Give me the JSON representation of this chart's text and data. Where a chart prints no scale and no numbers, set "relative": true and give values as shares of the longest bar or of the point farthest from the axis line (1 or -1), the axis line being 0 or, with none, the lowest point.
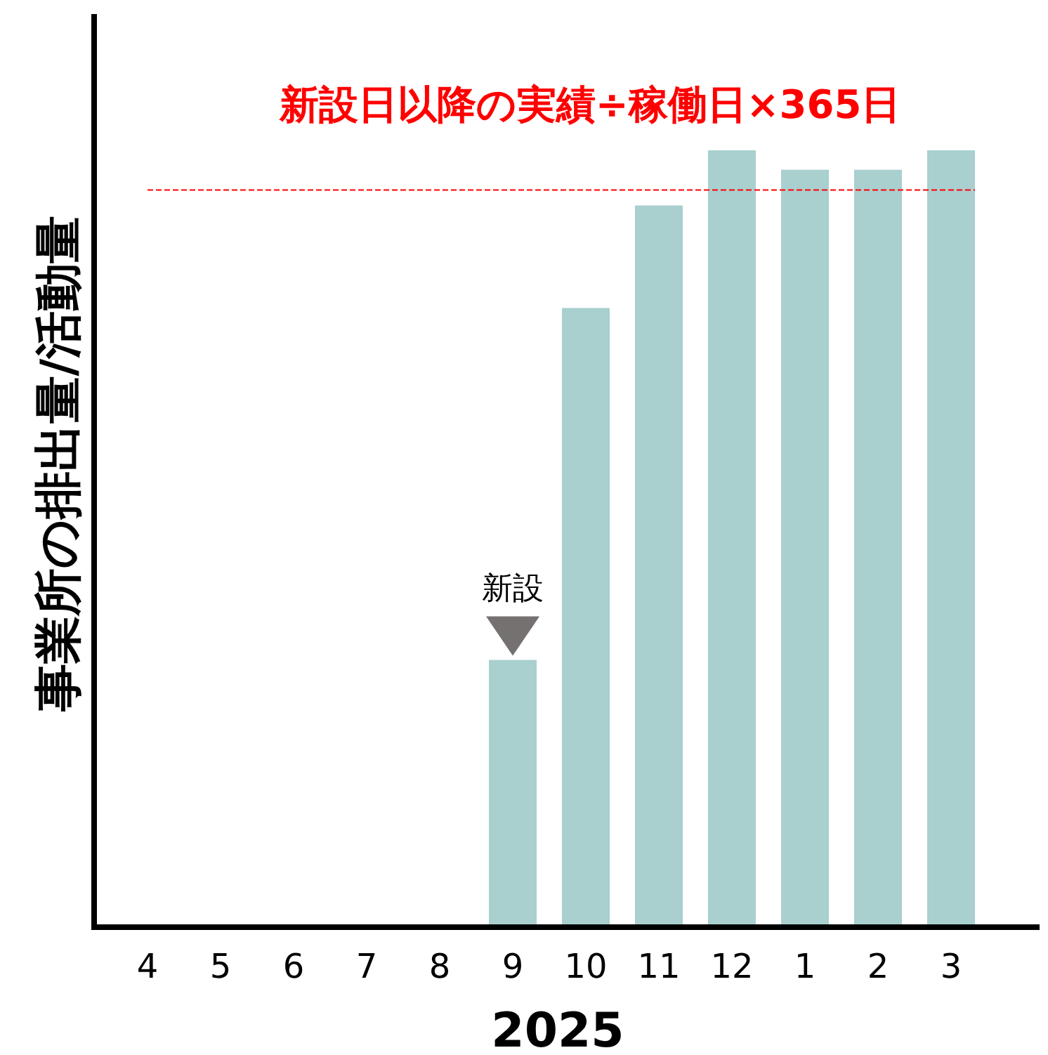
{
  "chart_data": {
    "type": "bar",
    "relative": true,
    "xlabel": "2025",
    "ylabel": "事業所の排出量/活動量",
    "categories": [
      "4",
      "5",
      "6",
      "7",
      "8",
      "9",
      "10",
      "11",
      "12",
      "1",
      "2",
      "3"
    ],
    "values": [
      null,
      null,
      null,
      null,
      null,
      0.344,
      0.797,
      0.929,
      1,
      0.975,
      0.975,
      1
    ],
    "color": "#a9cfcf",
    "ref_lines": [
      {
        "axis": "y",
        "value": 0.949,
        "label": "新設日以降の実績÷稼働日×365日",
        "color": "#ff0000",
        "line_style": "dashed"
      }
    ],
    "annotations": [
      {
        "text": "新設",
        "x": "9",
        "y": 0.344
      }
    ],
    "grid": false
  }
}
